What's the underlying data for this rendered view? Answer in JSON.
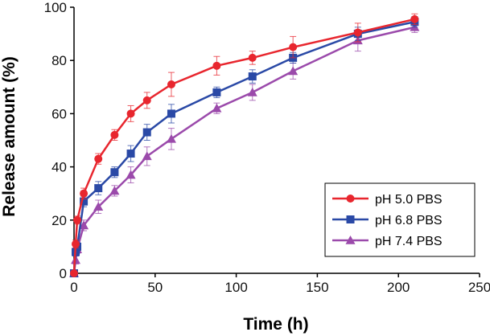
{
  "chart_data": {
    "type": "line",
    "title": "",
    "xlabel": "Time (h)",
    "ylabel": "Release amount (%)",
    "xlim": [
      0,
      250
    ],
    "ylim": [
      0,
      100
    ],
    "xticks": [
      0,
      50,
      100,
      150,
      200,
      250
    ],
    "yticks": [
      0,
      20,
      40,
      60,
      80,
      100
    ],
    "grid": false,
    "legend_position": "bottom-right",
    "series": [
      {
        "name": "pH 5.0 PBS",
        "color": "#e8262e",
        "marker": "circle",
        "x": [
          0,
          1,
          2,
          6,
          15,
          25,
          35,
          45,
          60,
          88,
          110,
          135,
          175,
          210
        ],
        "y": [
          0,
          11,
          20,
          30,
          43,
          52,
          60,
          65,
          71,
          78,
          81,
          85,
          90.5,
          95.5
        ],
        "err": [
          0,
          1.5,
          1.5,
          2,
          2,
          2,
          3,
          3,
          4.5,
          3.5,
          2.5,
          4,
          3.5,
          2
        ]
      },
      {
        "name": "pH 6.8 PBS",
        "color": "#2a49a6",
        "marker": "square",
        "x": [
          0,
          1,
          2,
          6,
          15,
          25,
          35,
          45,
          60,
          88,
          110,
          135,
          175,
          210
        ],
        "y": [
          0,
          8,
          10,
          27,
          32,
          38,
          45,
          53,
          60,
          68,
          74,
          81,
          90,
          94.5
        ],
        "err": [
          0,
          1.5,
          1.5,
          2,
          2.5,
          2,
          3,
          3,
          3.5,
          2,
          2.5,
          2,
          2.5,
          2
        ]
      },
      {
        "name": "pH 7.4 PBS",
        "color": "#9b4aab",
        "marker": "triangle",
        "x": [
          0,
          1,
          2,
          6,
          15,
          25,
          35,
          45,
          60,
          88,
          110,
          135,
          175,
          210
        ],
        "y": [
          0,
          5,
          9,
          18,
          25,
          31,
          37,
          44,
          50.5,
          62,
          68,
          76,
          87.5,
          92.5
        ],
        "err": [
          0,
          1.5,
          1.5,
          2,
          2.5,
          2,
          3,
          3.5,
          4,
          2,
          3,
          3,
          4,
          2
        ]
      }
    ]
  }
}
